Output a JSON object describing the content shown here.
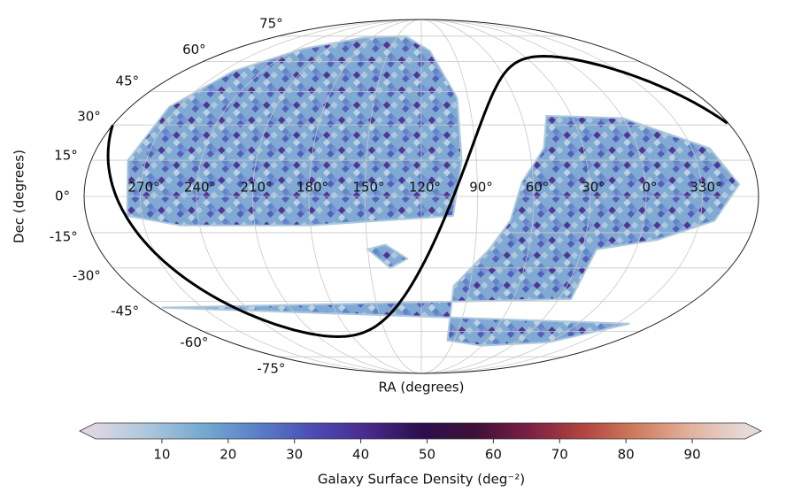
{
  "chart_data": {
    "type": "mollweide",
    "xlabel": "RA (degrees)",
    "ylabel": "Dec (degrees)",
    "xticks": [
      {
        "value": 270,
        "label": "270°"
      },
      {
        "value": 240,
        "label": "240°"
      },
      {
        "value": 210,
        "label": "210°"
      },
      {
        "value": 180,
        "label": "180°"
      },
      {
        "value": 150,
        "label": "150°"
      },
      {
        "value": 120,
        "label": "120°"
      },
      {
        "value": 90,
        "label": "90°"
      },
      {
        "value": 60,
        "label": "60°"
      },
      {
        "value": 30,
        "label": "30°"
      },
      {
        "value": 0,
        "label": "0°"
      },
      {
        "value": 330,
        "label": "330°"
      }
    ],
    "yticks": [
      {
        "value": -75,
        "label": "-75°"
      },
      {
        "value": -60,
        "label": "-60°"
      },
      {
        "value": -45,
        "label": "-45°"
      },
      {
        "value": -30,
        "label": "-30°"
      },
      {
        "value": -15,
        "label": "-15°"
      },
      {
        "value": 0,
        "label": "0°"
      },
      {
        "value": 15,
        "label": "15°"
      },
      {
        "value": 30,
        "label": "30°"
      },
      {
        "value": 45,
        "label": "45°"
      },
      {
        "value": 60,
        "label": "60°"
      },
      {
        "value": 75,
        "label": "75°"
      }
    ],
    "grid": true,
    "colorbar": {
      "label": "Galaxy Surface Density (deg⁻²)",
      "clim": [
        0,
        98
      ],
      "ticks": [
        10,
        20,
        30,
        40,
        50,
        60,
        70,
        80,
        90
      ],
      "colormap": [
        "#ddd6e2",
        "#a9c6dc",
        "#74a9d0",
        "#5a7fc8",
        "#4b4db5",
        "#4a2a8e",
        "#2b0f4e",
        "#3f1037",
        "#7a1f45",
        "#b2433f",
        "#d07d5e",
        "#e2b39e",
        "#e6dad7"
      ]
    }
  }
}
